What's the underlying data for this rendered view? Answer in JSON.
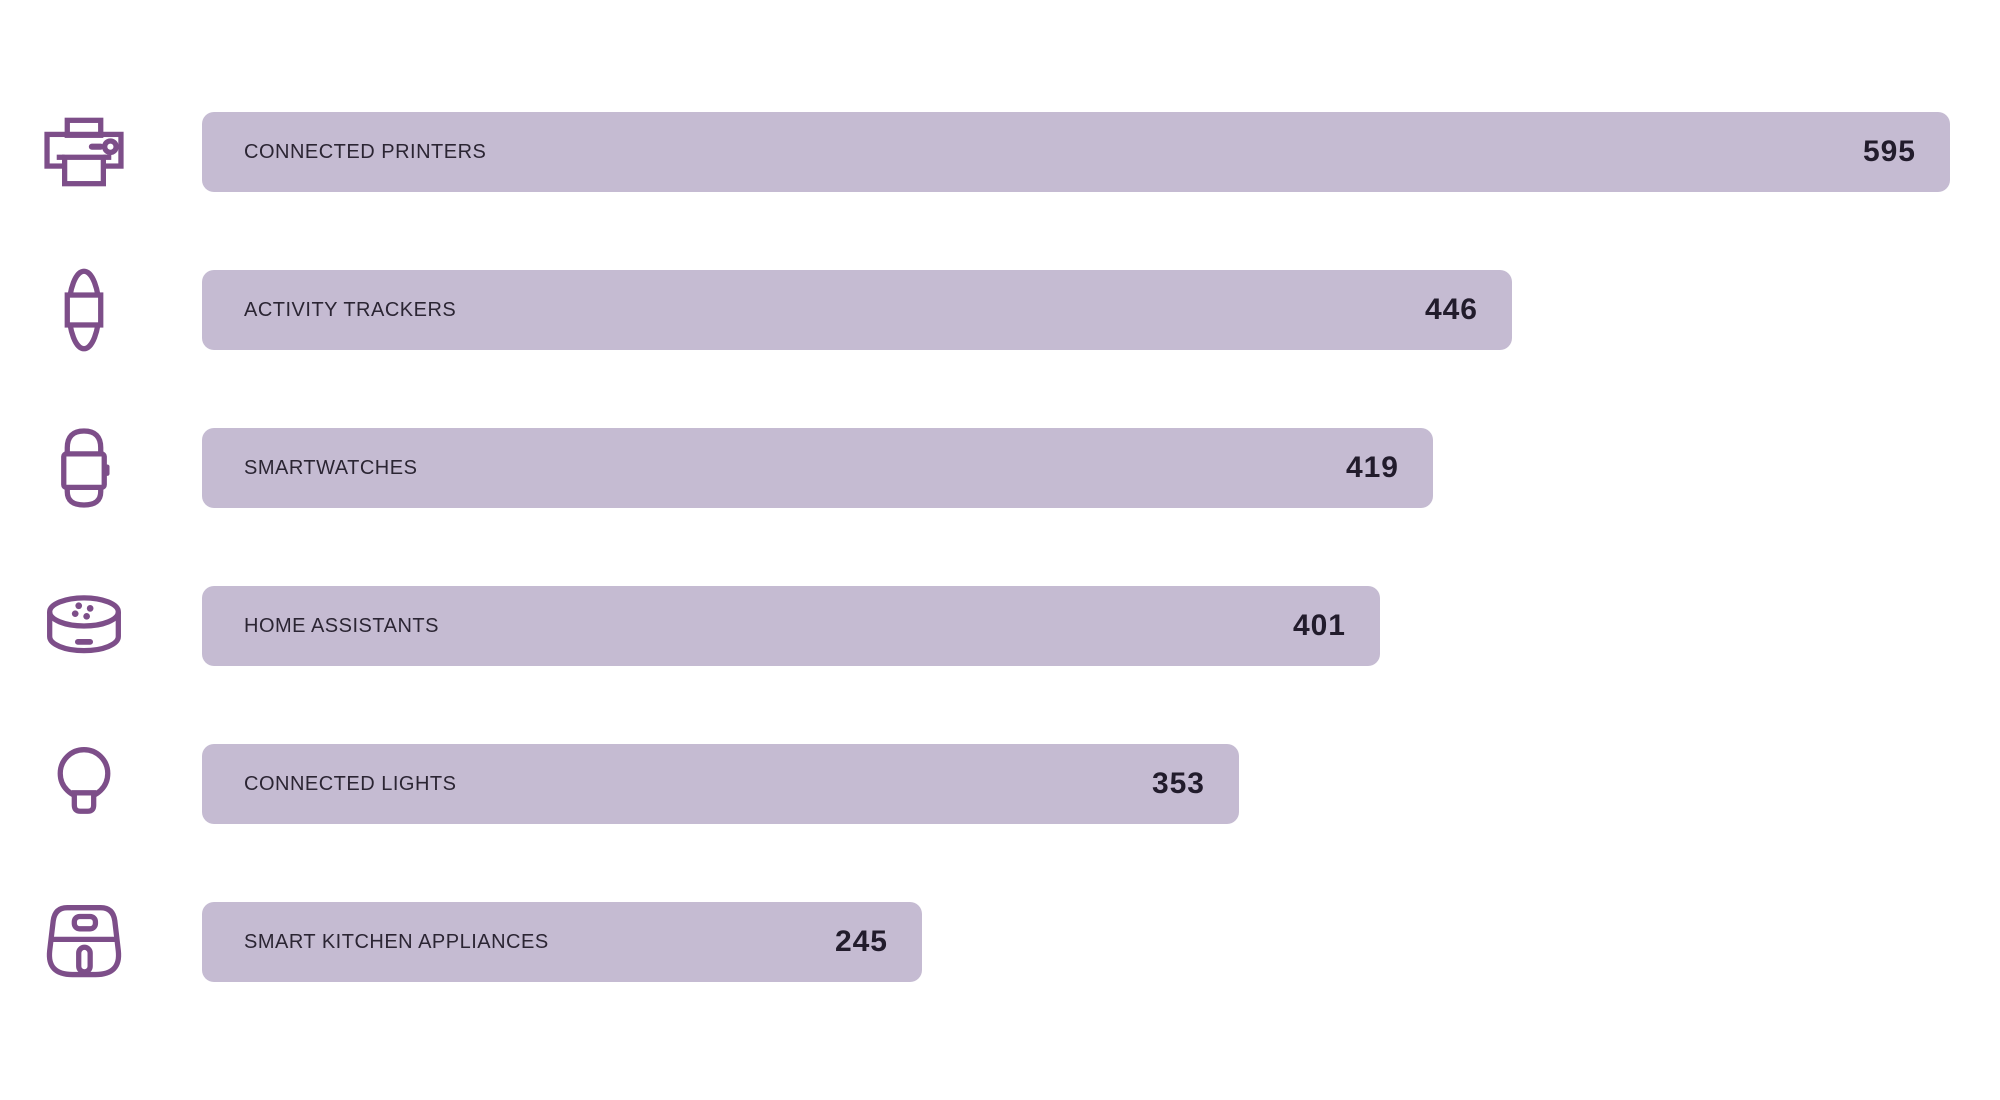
{
  "chart_data": {
    "type": "bar",
    "orientation": "horizontal",
    "title": "",
    "categories": [
      "CONNECTED PRINTERS",
      "ACTIVITY TRACKERS",
      "SMARTWATCHES",
      "HOME ASSISTANTS",
      "CONNECTED LIGHTS",
      "SMART KITCHEN APPLIANCES"
    ],
    "values": [
      595,
      446,
      419,
      401,
      353,
      245
    ],
    "icons": [
      "printer-icon",
      "fitness-tracker-icon",
      "smartwatch-icon",
      "smart-speaker-icon",
      "light-bulb-icon",
      "air-fryer-icon"
    ],
    "value_range": [
      0,
      595
    ],
    "axis_shown": false,
    "grid": false,
    "legend": false,
    "value_label_position": "inside-bar-right",
    "category_label_position": "inside-bar-left"
  },
  "colors": {
    "background": "#ffffff",
    "bar": "#c5bbd2",
    "label": "#2b2533",
    "value": "#221c2c",
    "icon": "#7d4e89"
  }
}
